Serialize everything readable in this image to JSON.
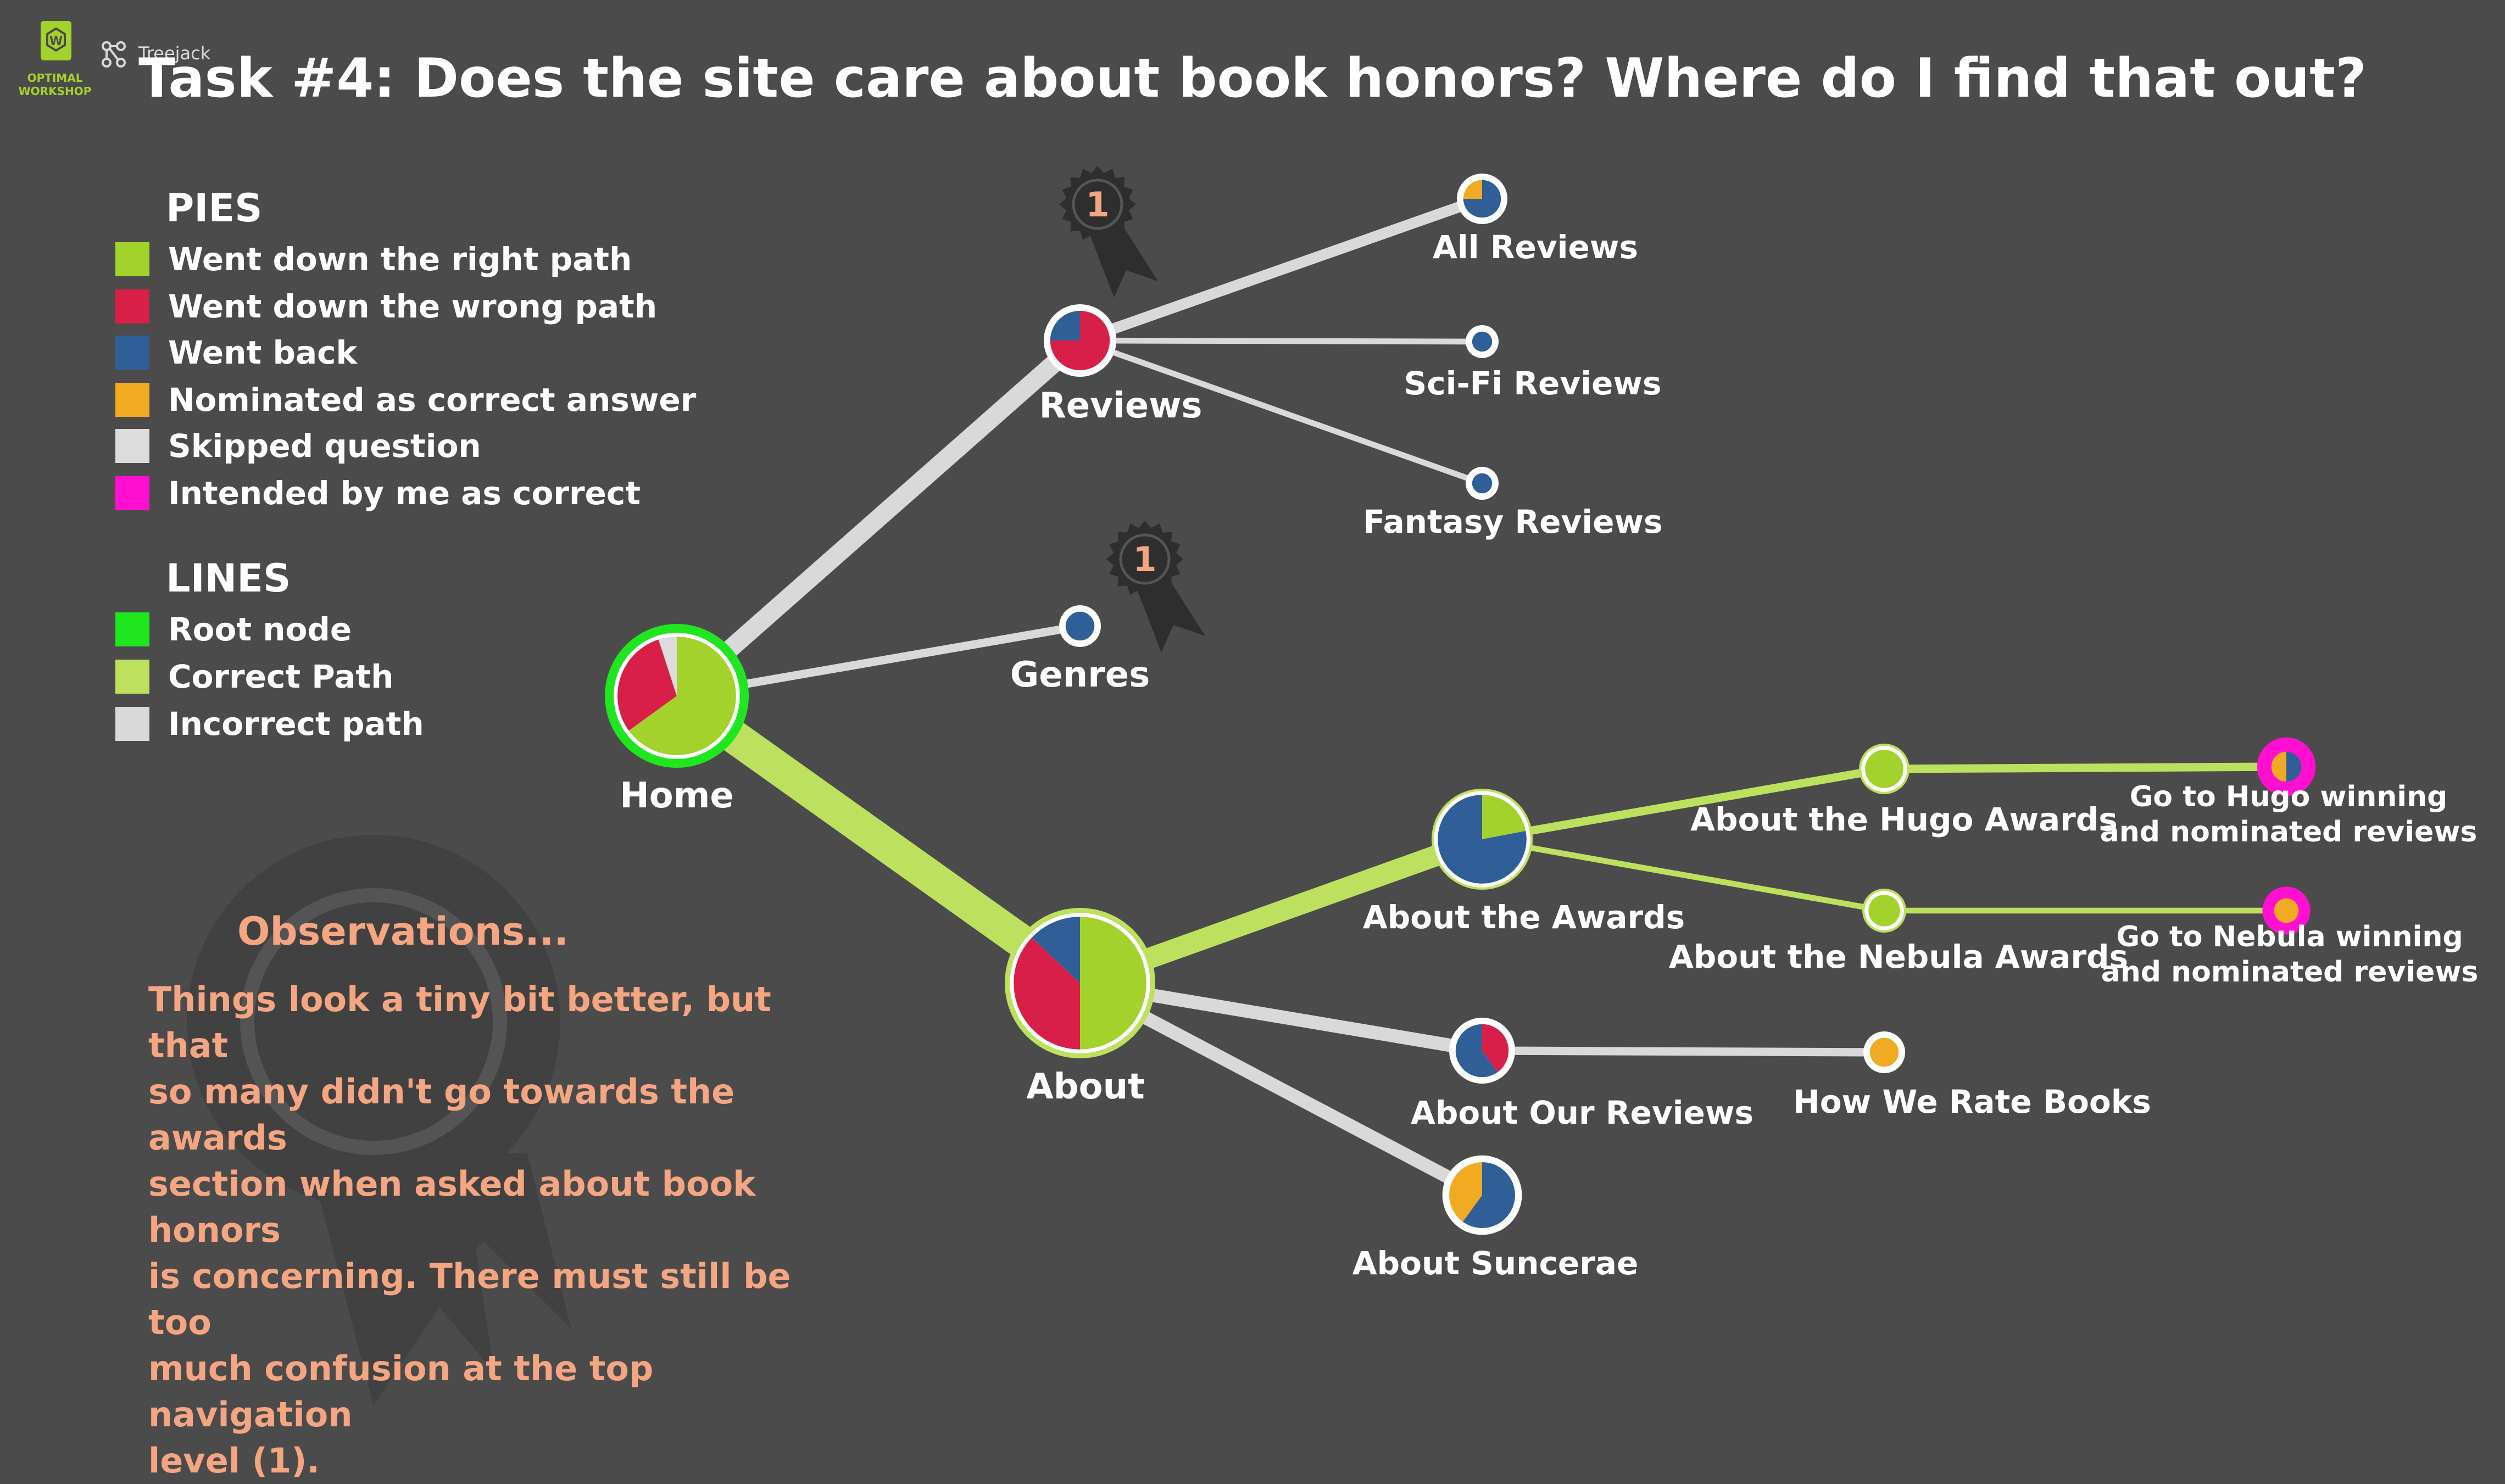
{
  "title": "Task #4: Does the site care about book honors? Where do I find that out?",
  "branding": {
    "left": "OPTIMAL\nWORKSHOP",
    "right": "Treejack",
    "logo_icon": "optimal-workshop-logo-icon",
    "tree_icon": "treejack-icon"
  },
  "colors": {
    "background": "#4b4b4b",
    "right": "#a4d22c",
    "wrong": "#d81f47",
    "back": "#2f5f96",
    "nominated": "#f0ab22",
    "skipped": "#dcdcdc",
    "intended": "#ff10d0",
    "root": "#1fe61f",
    "correct_line": "#bde05e",
    "incorrect_line": "#d9d9d9",
    "observations": "#f4a582"
  },
  "legend": {
    "pies_title": "PIES",
    "pies": [
      {
        "label": "Went down the right path",
        "color": "#a4d22c"
      },
      {
        "label": "Went down the wrong path",
        "color": "#d81f47"
      },
      {
        "label": "Went back",
        "color": "#2f5f96"
      },
      {
        "label": "Nominated as correct answer",
        "color": "#f0ab22"
      },
      {
        "label": "Skipped question",
        "color": "#dcdcdc"
      },
      {
        "label": "Intended by me as correct",
        "color": "#ff10d0"
      }
    ],
    "lines_title": "LINES",
    "lines": [
      {
        "label": "Root node",
        "color": "#1fe61f"
      },
      {
        "label": "Correct Path",
        "color": "#bde05e"
      },
      {
        "label": "Incorrect path",
        "color": "#d9d9d9"
      }
    ]
  },
  "observations": {
    "title": "Observations...",
    "text": "Things look a tiny bit better, but that\nso many didn't go towards the awards\nsection when asked about book honors\nis concerning. There must still be too\nmuch confusion at the top navigation\nlevel (1)."
  },
  "badges": [
    {
      "label": "1",
      "attached_to": "reviews"
    },
    {
      "label": "1",
      "attached_to": "genres"
    }
  ],
  "tree": {
    "nodes": [
      {
        "id": "home",
        "label": "Home",
        "ring": "root",
        "pie": [
          [
            "right",
            0.65
          ],
          [
            "wrong",
            0.3
          ],
          [
            "skipped",
            0.05
          ]
        ]
      },
      {
        "id": "reviews",
        "label": "Reviews",
        "ring": "plain",
        "pie": [
          [
            "wrong",
            0.75
          ],
          [
            "back",
            0.25
          ]
        ]
      },
      {
        "id": "genres",
        "label": "Genres",
        "ring": "plain",
        "pie": [
          [
            "back",
            1.0
          ]
        ]
      },
      {
        "id": "all_reviews",
        "label": "All Reviews",
        "ring": "plain",
        "pie": [
          [
            "back",
            0.75
          ],
          [
            "nominated",
            0.25
          ]
        ]
      },
      {
        "id": "scifi_reviews",
        "label": "Sci-Fi Reviews",
        "ring": "plain",
        "pie": [
          [
            "back",
            1.0
          ]
        ]
      },
      {
        "id": "fantasy_reviews",
        "label": "Fantasy Reviews",
        "ring": "plain",
        "pie": [
          [
            "back",
            1.0
          ]
        ]
      },
      {
        "id": "about",
        "label": "About",
        "ring": "correct",
        "pie": [
          [
            "right",
            0.5
          ],
          [
            "wrong",
            0.37
          ],
          [
            "back",
            0.13
          ]
        ]
      },
      {
        "id": "about_awards",
        "label": "About the Awards",
        "ring": "correct",
        "pie": [
          [
            "right",
            0.22
          ],
          [
            "back",
            0.78
          ]
        ]
      },
      {
        "id": "hugo",
        "label": "About the Hugo Awards",
        "ring": "correct",
        "pie": [
          [
            "right",
            1.0
          ]
        ]
      },
      {
        "id": "nebula",
        "label": "About the Nebula Awards",
        "ring": "correct",
        "pie": [
          [
            "right",
            1.0
          ]
        ]
      },
      {
        "id": "hugo_reviews",
        "label": "Go to Hugo winning\nand nominated reviews",
        "ring": "intended",
        "pie": [
          [
            "back",
            0.5
          ],
          [
            "nominated",
            0.5
          ]
        ]
      },
      {
        "id": "nebula_reviews",
        "label": "Go to Nebula winning\nand nominated reviews",
        "ring": "intended",
        "pie": [
          [
            "nominated",
            1.0
          ]
        ]
      },
      {
        "id": "our_reviews",
        "label": "About Our Reviews",
        "ring": "plain",
        "pie": [
          [
            "wrong",
            0.4
          ],
          [
            "back",
            0.6
          ]
        ]
      },
      {
        "id": "how_we_rate",
        "label": "How We Rate Books",
        "ring": "plain",
        "pie": [
          [
            "nominated",
            1.0
          ]
        ]
      },
      {
        "id": "suncerae",
        "label": "About Suncerae",
        "ring": "plain",
        "pie": [
          [
            "back",
            0.6
          ],
          [
            "nominated",
            0.4
          ]
        ]
      }
    ],
    "edges": [
      {
        "from": "home",
        "to": "reviews",
        "kind": "incorrect",
        "weight": 6
      },
      {
        "from": "home",
        "to": "genres",
        "kind": "incorrect",
        "weight": 2
      },
      {
        "from": "home",
        "to": "about",
        "kind": "correct",
        "weight": 12
      },
      {
        "from": "reviews",
        "to": "all_reviews",
        "kind": "incorrect",
        "weight": 3
      },
      {
        "from": "reviews",
        "to": "scifi_reviews",
        "kind": "incorrect",
        "weight": 1
      },
      {
        "from": "reviews",
        "to": "fantasy_reviews",
        "kind": "incorrect",
        "weight": 1
      },
      {
        "from": "about",
        "to": "about_awards",
        "kind": "correct",
        "weight": 7
      },
      {
        "from": "about",
        "to": "our_reviews",
        "kind": "incorrect",
        "weight": 4
      },
      {
        "from": "about",
        "to": "suncerae",
        "kind": "incorrect",
        "weight": 4
      },
      {
        "from": "about_awards",
        "to": "hugo",
        "kind": "correct",
        "weight": 2
      },
      {
        "from": "about_awards",
        "to": "nebula",
        "kind": "correct",
        "weight": 1
      },
      {
        "from": "hugo",
        "to": "hugo_reviews",
        "kind": "correct",
        "weight": 2
      },
      {
        "from": "nebula",
        "to": "nebula_reviews",
        "kind": "correct",
        "weight": 1
      },
      {
        "from": "our_reviews",
        "to": "how_we_rate",
        "kind": "incorrect",
        "weight": 2
      }
    ]
  }
}
